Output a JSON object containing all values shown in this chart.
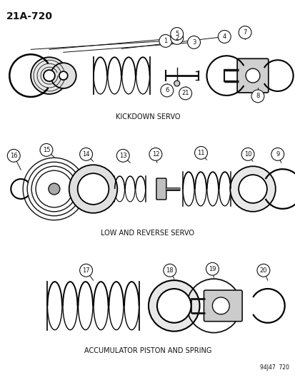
{
  "title": "21A-720",
  "bg_color": "#ffffff",
  "section1_label": "KICKDOWN SERVO",
  "section2_label": "LOW AND REVERSE SERVO",
  "section3_label": "ACCUMULATOR PISTON AND SPRING",
  "footer": "94J47  720",
  "dark": "#111111"
}
